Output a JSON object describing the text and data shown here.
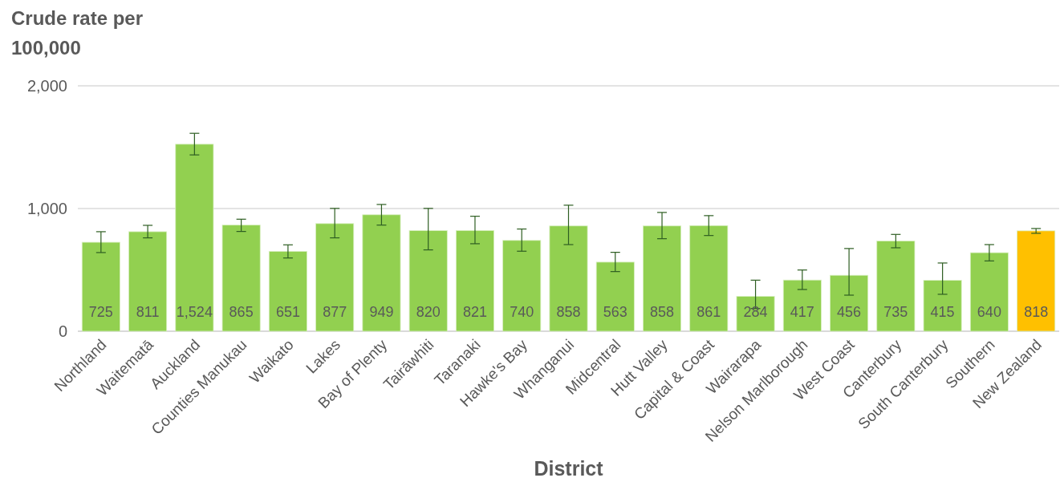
{
  "chart_data": {
    "type": "bar",
    "title": "Crude rate per 100,000",
    "xlabel": "District",
    "categories": [
      "Northland",
      "Waitematā",
      "Auckland",
      "Counties Manukau",
      "Waikato",
      "Lakes",
      "Bay of Plenty",
      "Tairāwhiti",
      "Taranaki",
      "Hawke's Bay",
      "Whanganui",
      "Midcentral",
      "Hutt Valley",
      "Capital & Coast",
      "Wairarapa",
      "Nelson Marlborough",
      "West Coast",
      "Canterbury",
      "South Canterbury",
      "Southern",
      "New Zealand"
    ],
    "values": [
      725,
      811,
      1524,
      865,
      651,
      877,
      949,
      820,
      821,
      740,
      858,
      563,
      858,
      861,
      284,
      417,
      456,
      735,
      415,
      640,
      818
    ],
    "colors": [
      "#92d050",
      "#92d050",
      "#92d050",
      "#92d050",
      "#92d050",
      "#92d050",
      "#92d050",
      "#92d050",
      "#92d050",
      "#92d050",
      "#92d050",
      "#92d050",
      "#92d050",
      "#92d050",
      "#92d050",
      "#92d050",
      "#92d050",
      "#92d050",
      "#92d050",
      "#92d050",
      "#ffc000"
    ],
    "errors": [
      [
        641,
        811
      ],
      [
        761,
        863
      ],
      [
        1437,
        1613
      ],
      [
        813,
        913
      ],
      [
        597,
        704
      ],
      [
        761,
        1001
      ],
      [
        865,
        1033
      ],
      [
        663,
        1001
      ],
      [
        713,
        937
      ],
      [
        652,
        833
      ],
      [
        706,
        1027
      ],
      [
        486,
        643
      ],
      [
        754,
        968
      ],
      [
        780,
        942
      ],
      [
        185,
        416
      ],
      [
        340,
        499
      ],
      [
        294,
        674
      ],
      [
        680,
        789
      ],
      [
        301,
        556
      ],
      [
        573,
        706
      ],
      [
        798,
        837
      ]
    ],
    "value_labels": [
      "725",
      "811",
      "1,524",
      "865",
      "651",
      "877",
      "949",
      "820",
      "821",
      "740",
      "858",
      "563",
      "858",
      "861",
      "284",
      "417",
      "456",
      "735",
      "415",
      "640",
      "818"
    ],
    "ylim": [
      0,
      2000
    ],
    "yticks": [
      0,
      {
        "value": 1000,
        "label": "1,000"
      },
      {
        "value": 2000,
        "label": "2,000"
      }
    ],
    "grid": "y"
  }
}
